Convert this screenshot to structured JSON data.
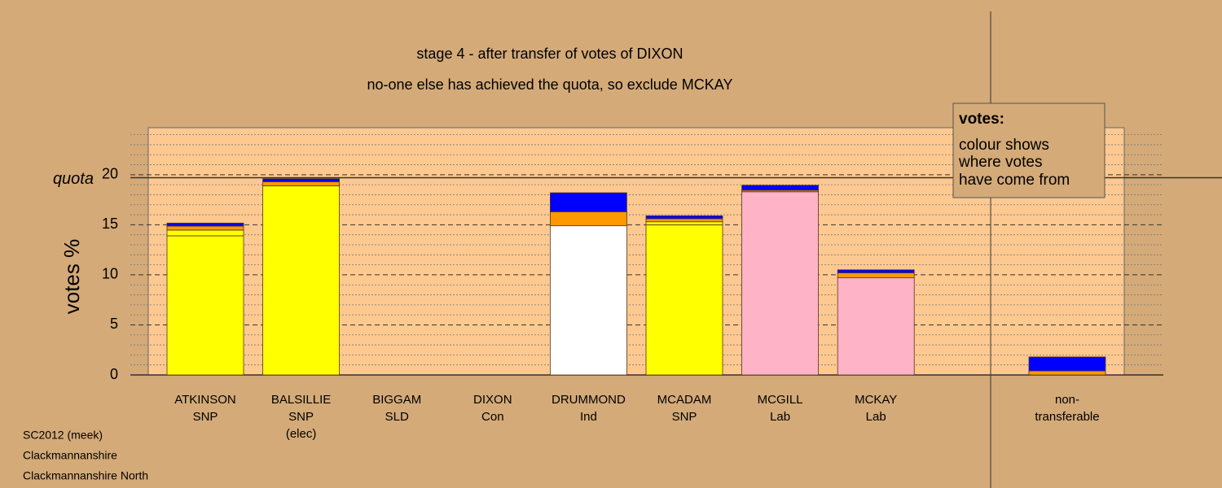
{
  "chart_data": {
    "type": "bar",
    "title": "stage 4 - after transfer of votes of DIXON",
    "subtitle": "no-one else has achieved the quota, so exclude MCKAY",
    "y_label": "votes %",
    "quota_label": "quota",
    "quota": 19.7,
    "categories": [
      [
        "ATKINSON",
        "SNP"
      ],
      [
        "BALSILLIE",
        "SNP",
        "(elec)"
      ],
      [
        "BIGGAM",
        "SLD"
      ],
      [
        "DIXON",
        "Con"
      ],
      [
        "DRUMMOND",
        "Ind"
      ],
      [
        "MCADAM",
        "SNP"
      ],
      [
        "MCGILL",
        "Lab"
      ],
      [
        "MCKAY",
        "Lab"
      ],
      [
        "non-",
        "transferable"
      ]
    ],
    "series": [
      {
        "colors": [
          "#ffff00",
          "#ffff00",
          "#ffff00",
          "#ffff00",
          "#ffffff",
          "#ffff00",
          "#ffb3c6",
          "#ffb3c6",
          "#ffffff"
        ],
        "values": [
          13.9,
          18.9,
          0,
          0,
          14.9,
          15.0,
          18.3,
          9.7,
          0
        ]
      },
      {
        "color": "#ffff00",
        "values": [
          0.57,
          0,
          0,
          0,
          0,
          0.3,
          0,
          0,
          0
        ]
      },
      {
        "color": "#ff9900",
        "values": [
          0.4,
          0.4,
          0,
          0,
          1.4,
          0.3,
          0.15,
          0.5,
          0.4
        ]
      },
      {
        "color": "#0000ff",
        "values": [
          0.3,
          0.3,
          0,
          0,
          1.9,
          0.3,
          0.5,
          0.3,
          1.4
        ]
      }
    ],
    "ylim": [
      0,
      24.7
    ],
    "yticks": [
      0,
      5,
      10,
      15,
      20
    ],
    "minor_yticks": [
      1,
      2,
      3,
      4,
      6,
      7,
      8,
      9,
      11,
      12,
      13,
      14,
      16,
      17,
      18,
      19,
      21,
      22,
      23,
      24
    ],
    "legend": {
      "title": "votes:",
      "lines": [
        "colour shows",
        "where votes",
        "have come from"
      ]
    },
    "footer": [
      "SC2012 (meek)",
      "Clackmannanshire",
      "Clackmannanshire North"
    ]
  }
}
